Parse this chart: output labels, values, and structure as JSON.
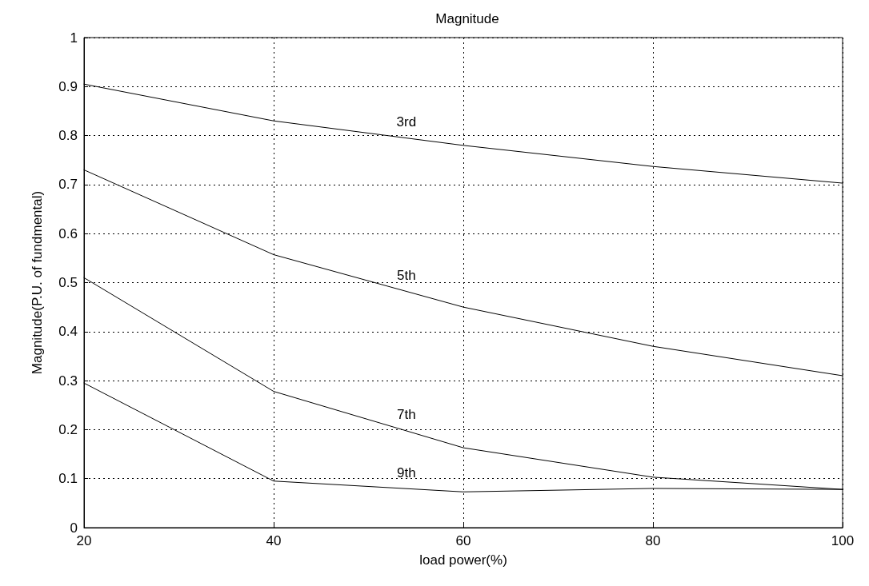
{
  "chart_data": {
    "type": "line",
    "title": "Magnitude",
    "xlabel": "load power(%)",
    "ylabel": "Magnitude(P.U. of fundmental)",
    "x": [
      20,
      40,
      60,
      80,
      100
    ],
    "series": [
      {
        "name": "3rd",
        "color": "#000000",
        "values": [
          0.905,
          0.83,
          0.78,
          0.737,
          0.703
        ]
      },
      {
        "name": "5th",
        "color": "#000000",
        "values": [
          0.73,
          0.557,
          0.45,
          0.37,
          0.31
        ]
      },
      {
        "name": "7th",
        "color": "#000000",
        "values": [
          0.51,
          0.278,
          0.163,
          0.103,
          0.078
        ]
      },
      {
        "name": "9th",
        "color": "#000000",
        "values": [
          0.295,
          0.095,
          0.073,
          0.08,
          0.078
        ]
      }
    ],
    "xlim": [
      20,
      100
    ],
    "xticks": [
      20,
      40,
      60,
      80,
      100
    ],
    "ylim": [
      0,
      1
    ],
    "yticks": [
      0,
      0.1,
      0.2,
      0.3,
      0.4,
      0.5,
      0.6,
      0.7,
      0.8,
      0.9,
      1
    ],
    "grid": true,
    "marker": "none",
    "line_style": "solid"
  }
}
